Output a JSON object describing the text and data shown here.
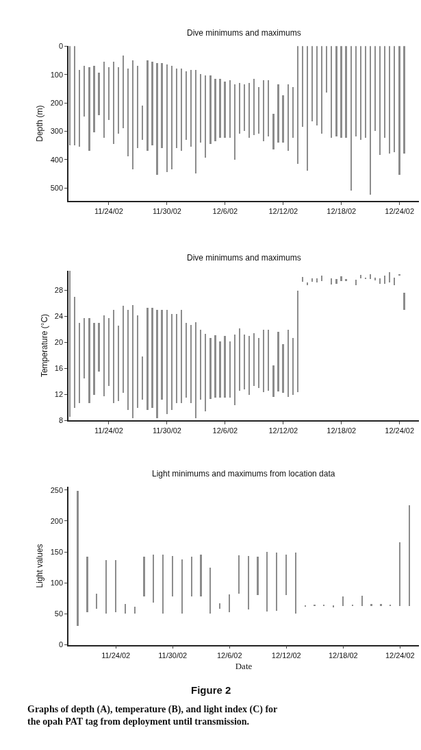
{
  "chart_data": [
    {
      "type": "bar",
      "title": "Dive minimums and maximums",
      "ylabel": "Depth (m)",
      "x": [
        "--11-20T00:00",
        "--11-20T12:00",
        "--11-21T00:00",
        "--11-21T12:00",
        "--11-22T00:00",
        "--11-22T12:00",
        "--11-23T00:00",
        "--11-23T12:00",
        "--11-24T00:00",
        "--11-24T12:00",
        "--11-25T00:00",
        "--11-25T12:00",
        "--11-26T00:00",
        "--11-26T12:00",
        "--11-27T00:00",
        "--11-27T12:00",
        "--11-28T00:00",
        "--11-28T12:00",
        "--11-29T00:00",
        "--11-29T12:00",
        "--11-30T00:00",
        "--11-30T12:00",
        "--12-01T00:00",
        "--12-01T12:00",
        "--12-02T00:00",
        "--12-02T12:00",
        "--12-03T00:00",
        "--12-03T12:00",
        "--12-04T00:00",
        "--12-04T12:00",
        "--12-05T00:00",
        "--12-05T12:00",
        "--12-06T00:00",
        "--12-06T12:00",
        "--12-07T00:00",
        "--12-07T12:00",
        "--12-08T00:00",
        "--12-08T12:00",
        "--12-09T00:00",
        "--12-09T12:00",
        "--12-10T00:00",
        "--12-10T12:00",
        "--12-11T00:00",
        "--12-11T12:00",
        "--12-12T00:00",
        "--12-12T12:00",
        "--12-13T00:00",
        "--12-13T12:00",
        "--12-14T00:00",
        "--12-14T12:00",
        "--12-15T00:00",
        "--12-15T12:00",
        "--12-16T00:00",
        "--12-16T12:00",
        "--12-17T00:00",
        "--12-17T12:00",
        "--12-18T00:00",
        "--12-18T12:00",
        "--12-19T00:00",
        "--12-19T12:00",
        "--12-20T00:00",
        "--12-20T12:00",
        "--12-21T00:00",
        "--12-21T12:00",
        "--12-22T00:00",
        "--12-22T12:00",
        "--12-23T00:00",
        "--12-23T12:00",
        "--12-24T00:00",
        "--12-24T12:00"
      ],
      "base": [
        0,
        0,
        85,
        70,
        75,
        70,
        95,
        55,
        75,
        55,
        75,
        35,
        80,
        50,
        70,
        210,
        50,
        55,
        60,
        60,
        65,
        70,
        80,
        80,
        90,
        85,
        85,
        100,
        105,
        105,
        115,
        115,
        125,
        120,
        135,
        130,
        135,
        130,
        115,
        145,
        120,
        120,
        240,
        135,
        175,
        135,
        145,
        0,
        0,
        0,
        0,
        0,
        0,
        0,
        0,
        0,
        0,
        0,
        0,
        0,
        0,
        0,
        0,
        0,
        0,
        0,
        0,
        0,
        0,
        0
      ],
      "values": [
        350,
        350,
        270,
        180,
        295,
        235,
        150,
        270,
        185,
        290,
        235,
        255,
        310,
        385,
        290,
        120,
        320,
        295,
        395,
        300,
        380,
        365,
        280,
        290,
        240,
        270,
        365,
        240,
        290,
        240,
        220,
        210,
        200,
        205,
        265,
        180,
        165,
        195,
        200,
        165,
        215,
        200,
        125,
        205,
        165,
        235,
        180,
        415,
        285,
        440,
        265,
        280,
        310,
        165,
        325,
        320,
        325,
        325,
        510,
        320,
        330,
        325,
        525,
        300,
        385,
        325,
        380,
        375,
        455,
        380
      ],
      "color": "#8c8c8c",
      "xlim": [
        "--11-19T20:00",
        "--12-26T00:00"
      ],
      "xticks": [
        {
          "value": "--11-24",
          "label": "11/24/02"
        },
        {
          "value": "--11-30",
          "label": "11/30/02"
        },
        {
          "value": "--12-06",
          "label": "12/6/02"
        },
        {
          "value": "--12-12",
          "label": "12/12/02"
        },
        {
          "value": "--12-18",
          "label": "12/18/02"
        },
        {
          "value": "--12-24",
          "label": "12/24/02"
        }
      ],
      "ylim": [
        545,
        0
      ],
      "yticks": [
        0,
        100,
        200,
        300,
        400,
        500
      ]
    },
    {
      "type": "bar",
      "title": "Dive minimums and maximums",
      "ylabel": "Temperature (°C)",
      "x": [
        "--11-20T00:00",
        "--11-20T12:00",
        "--11-21T00:00",
        "--11-21T12:00",
        "--11-22T00:00",
        "--11-22T12:00",
        "--11-23T00:00",
        "--11-23T12:00",
        "--11-24T00:00",
        "--11-24T12:00",
        "--11-25T00:00",
        "--11-25T12:00",
        "--11-26T00:00",
        "--11-26T12:00",
        "--11-27T00:00",
        "--11-27T12:00",
        "--11-28T00:00",
        "--11-28T12:00",
        "--11-29T00:00",
        "--11-29T12:00",
        "--11-30T00:00",
        "--11-30T12:00",
        "--12-01T00:00",
        "--12-01T12:00",
        "--12-02T00:00",
        "--12-02T12:00",
        "--12-03T00:00",
        "--12-03T12:00",
        "--12-04T00:00",
        "--12-04T12:00",
        "--12-05T00:00",
        "--12-05T12:00",
        "--12-06T00:00",
        "--12-06T12:00",
        "--12-07T00:00",
        "--12-07T12:00",
        "--12-08T00:00",
        "--12-08T12:00",
        "--12-09T00:00",
        "--12-09T12:00",
        "--12-10T00:00",
        "--12-10T12:00",
        "--12-11T00:00",
        "--12-11T12:00",
        "--12-12T00:00",
        "--12-12T12:00",
        "--12-13T00:00",
        "--12-13T12:00",
        "--12-14T00:00",
        "--12-14T12:00",
        "--12-15T00:00",
        "--12-15T12:00",
        "--12-16T00:00",
        "--12-16T12:00",
        "--12-17T00:00",
        "--12-17T12:00",
        "--12-18T00:00",
        "--12-18T12:00",
        "--12-19T00:00",
        "--12-19T12:00",
        "--12-20T00:00",
        "--12-20T12:00",
        "--12-21T00:00",
        "--12-21T12:00",
        "--12-22T00:00",
        "--12-22T12:00",
        "--12-23T00:00",
        "--12-23T12:00",
        "--12-24T00:00",
        "--12-24T12:00"
      ],
      "base": [
        8.6,
        10,
        10.7,
        14.5,
        10.7,
        12,
        15.5,
        11.7,
        13.3,
        10.7,
        11,
        12.3,
        9.6,
        8.4,
        10,
        11.2,
        9.6,
        10,
        8.4,
        11.2,
        9,
        9.6,
        10.7,
        10.7,
        11.5,
        10.7,
        8.4,
        11.2,
        9.4,
        11.3,
        11.5,
        11.5,
        11.5,
        11.5,
        10.4,
        12.6,
        12.8,
        12,
        13.3,
        13,
        12.4,
        12.6,
        11.6,
        12.5,
        12.3,
        11.6,
        12,
        12.4,
        29.3,
        28.8,
        29.3,
        29.2,
        29.4,
        null,
        28.9,
        29,
        29.4,
        29.5,
        null,
        28.8,
        29.8,
        29.8,
        29.7,
        29.5,
        29,
        29,
        29.2,
        28.8,
        30.3,
        25
      ],
      "values": [
        22.4,
        17,
        12.3,
        9.2,
        13,
        11,
        7.5,
        12.5,
        10.4,
        14.3,
        11.6,
        13.3,
        15.4,
        17.3,
        14.2,
        6.6,
        15.7,
        15.3,
        16.6,
        13.8,
        16,
        14.8,
        13.7,
        14.3,
        11.5,
        12,
        14.7,
        10.8,
        11.9,
        9.4,
        9.6,
        8.7,
        9.5,
        8.7,
        10.8,
        9.6,
        8.4,
        9,
        8.1,
        7.7,
        9.6,
        9.4,
        4.9,
        9.1,
        7.4,
        10.4,
        8.7,
        15.6,
        0.8,
        0.4,
        0.5,
        0.6,
        0.9,
        null,
        0.9,
        0.7,
        0.8,
        0.2,
        null,
        0.8,
        0.6,
        0.2,
        0.8,
        0.5,
        0.8,
        1.3,
        1.6,
        1.2,
        0.2,
        2.6
      ],
      "color": "#8c8c8c",
      "xlim": [
        "--11-19T20:00",
        "--12-26T00:00"
      ],
      "xticks": [
        {
          "value": "--11-24",
          "label": "11/24/02"
        },
        {
          "value": "--11-30",
          "label": "11/30/02"
        },
        {
          "value": "--12-06",
          "label": "12/6/02"
        },
        {
          "value": "--12-12",
          "label": "12/12/02"
        },
        {
          "value": "--12-18",
          "label": "12/18/02"
        },
        {
          "value": "--12-24",
          "label": "12/24/02"
        }
      ],
      "ylim": [
        8,
        31
      ],
      "yticks": [
        8,
        12,
        16,
        20,
        24,
        28
      ]
    },
    {
      "type": "bar",
      "title": "Light minimums and maximums from location data",
      "ylabel": "Light values",
      "xlabel": "Date",
      "x": [
        "--11-20",
        "--11-21",
        "--11-22",
        "--11-23",
        "--11-24",
        "--11-25",
        "--11-26",
        "--11-27",
        "--11-28",
        "--11-29",
        "--11-30",
        "--12-01",
        "--12-02",
        "--12-03",
        "--12-04",
        "--12-05",
        "--12-06",
        "--12-07",
        "--12-08",
        "--12-09",
        "--12-10",
        "--12-11",
        "--12-12",
        "--12-13",
        "--12-14",
        "--12-15",
        "--12-16",
        "--12-17",
        "--12-18",
        "--12-19",
        "--12-20",
        "--12-21",
        "--12-22",
        "--12-23",
        "--12-24",
        "--12-25"
      ],
      "base": [
        30,
        52,
        58,
        50,
        52,
        50,
        50,
        78,
        68,
        50,
        78,
        50,
        78,
        78,
        50,
        58,
        52,
        82,
        57,
        80,
        54,
        55,
        80,
        50,
        62,
        62,
        63,
        60,
        62,
        63,
        62,
        62,
        62,
        62,
        62,
        62
      ],
      "values": [
        218,
        90,
        24,
        87,
        85,
        16,
        11,
        64,
        77,
        96,
        65,
        88,
        64,
        67,
        74,
        9,
        29,
        62,
        86,
        62,
        96,
        94,
        66,
        99,
        2,
        3,
        2,
        4,
        16,
        1,
        17,
        4,
        4,
        3,
        103,
        163
      ],
      "color": "#8c8c8c",
      "xlim": [
        "--11-19T00:00",
        "--12-26T00:00"
      ],
      "xticks": [
        {
          "value": "--11-24",
          "label": "11/24/02"
        },
        {
          "value": "--11-30",
          "label": "11/30/02"
        },
        {
          "value": "--12-06",
          "label": "12/6/02"
        },
        {
          "value": "--12-12",
          "label": "12/12/02"
        },
        {
          "value": "--12-18",
          "label": "12/18/02"
        },
        {
          "value": "--12-24",
          "label": "12/24/02"
        }
      ],
      "ylim": [
        0,
        255
      ],
      "yticks": [
        0,
        50,
        100,
        150,
        200,
        250
      ],
      "annotations": [
        "Figure 2",
        "Graphs of depth (A), temperature (B), and light index (C) for the opah PAT tag from deployment until transmission."
      ]
    }
  ]
}
